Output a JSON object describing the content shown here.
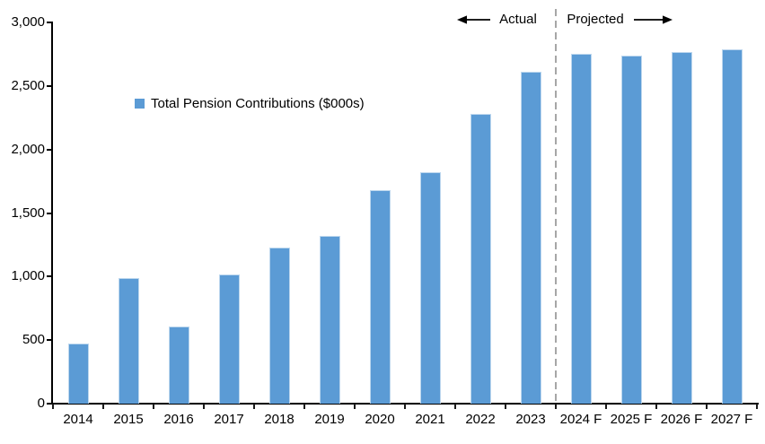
{
  "chart_data": {
    "type": "bar",
    "title": "",
    "legend": "Total Pension Contributions ($000s)",
    "categories": [
      "2014",
      "2015",
      "2016",
      "2017",
      "2018",
      "2019",
      "2020",
      "2021",
      "2022",
      "2023",
      "2024 F",
      "2025 F",
      "2026 F",
      "2027 F"
    ],
    "values": [
      470,
      990,
      610,
      1020,
      1230,
      1320,
      1680,
      1820,
      2280,
      2610,
      2750,
      2740,
      2765,
      2790
    ],
    "ylim": [
      0,
      3000
    ],
    "ytick_step": 500,
    "ytick_labels": [
      "0",
      "500",
      "1,000",
      "1,500",
      "2,000",
      "2,500",
      "3,000"
    ],
    "grid": false,
    "legend_position": "inside-upper-left",
    "bar_color": "#5B9BD5",
    "bar_edge_color": "#BDD7EE",
    "axis_color": "#000000",
    "divider": {
      "after_category": "2023",
      "after_index": 9,
      "style": "dashed",
      "color": "#A6A6A6"
    },
    "annotations": {
      "actual_label": "Actual",
      "projected_label": "Projected",
      "actual_side": "left-of-divider",
      "projected_side": "right-of-divider"
    }
  }
}
